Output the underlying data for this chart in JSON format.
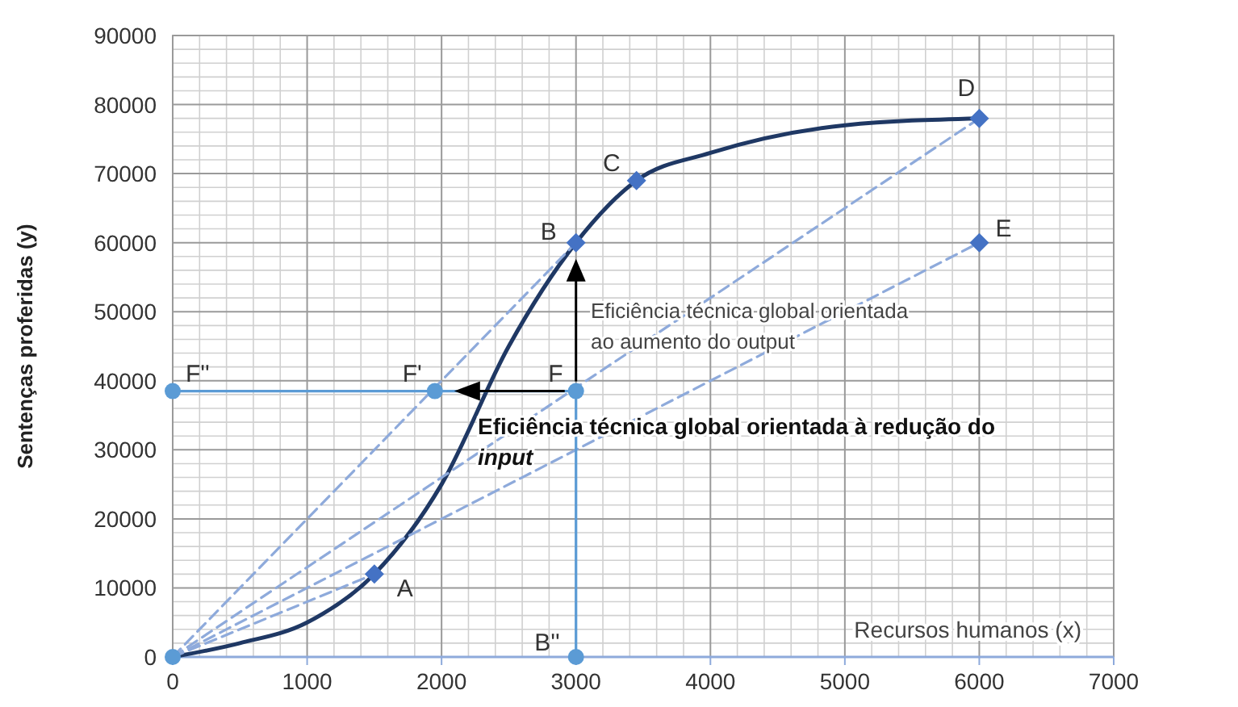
{
  "chart_data": {
    "type": "line",
    "ylabel": "Sentenças proferidas (y)",
    "xlabel": "Recursos humanos (x)",
    "xlim": [
      0,
      7000
    ],
    "xticks": [
      0,
      1000,
      2000,
      3000,
      4000,
      5000,
      6000,
      7000
    ],
    "ylim": [
      0,
      90000
    ],
    "yticks": [
      0,
      10000,
      20000,
      30000,
      40000,
      50000,
      60000,
      70000,
      80000,
      90000
    ],
    "grid": true,
    "series": [
      {
        "color": "#1f3864",
        "line_style": "solid",
        "x": [
          0,
          500,
          1000,
          1500,
          2000,
          2500,
          3000,
          3450,
          4000,
          5000,
          6000
        ],
        "values": [
          0,
          2000,
          5000,
          12000,
          25000,
          45000,
          60000,
          69000,
          73000,
          77000,
          78000
        ]
      },
      {
        "color": "#8eaadb",
        "line_style": "dashed",
        "x": [
          0,
          3000
        ],
        "values": [
          0,
          60000
        ]
      },
      {
        "color": "#8eaadb",
        "line_style": "dashed",
        "x": [
          0,
          6000
        ],
        "values": [
          0,
          78000
        ]
      },
      {
        "color": "#8eaadb",
        "line_style": "dashed",
        "x": [
          0,
          6000
        ],
        "values": [
          0,
          60000
        ]
      },
      {
        "color": "#8eaadb",
        "line_style": "dashed",
        "x": [
          0,
          1500
        ],
        "values": [
          0,
          12000
        ]
      },
      {
        "color": "#5b9bd5",
        "line_style": "solid",
        "x": [
          0,
          3000
        ],
        "values": [
          38500,
          38500
        ]
      },
      {
        "color": "#5b9bd5",
        "line_style": "solid",
        "x": [
          3000,
          3000
        ],
        "values": [
          38500,
          0
        ]
      },
      {
        "type": "scatter",
        "color": "#4472c4",
        "marker": "diamond",
        "x": [
          1500,
          3000,
          3450,
          6000,
          6000
        ],
        "values": [
          12000,
          60000,
          69000,
          78000,
          60000
        ]
      },
      {
        "type": "scatter",
        "color": "#5b9bd5",
        "marker": "circle",
        "x": [
          3000,
          1950,
          0,
          3000,
          0
        ],
        "values": [
          38500,
          38500,
          38500,
          0,
          0
        ]
      }
    ],
    "annotations": [
      {
        "text": "A",
        "x": 1500,
        "y": 12000
      },
      {
        "text": "B",
        "x": 3000,
        "y": 60000
      },
      {
        "text": "C",
        "x": 3450,
        "y": 69000
      },
      {
        "text": "D",
        "x": 6000,
        "y": 78000
      },
      {
        "text": "E",
        "x": 6000,
        "y": 60000
      },
      {
        "text": "F",
        "x": 3000,
        "y": 38500
      },
      {
        "text": "F'",
        "x": 1950,
        "y": 38500
      },
      {
        "text": "F''",
        "x": 0,
        "y": 38500
      },
      {
        "text": "B''",
        "x": 3000,
        "y": 0
      },
      {
        "text": "Eficiência técnica global orientada ao aumento do output",
        "x": 3000,
        "y": 60000
      },
      {
        "text": "Eficiência técnica global orientada à redução do input",
        "x": 1950,
        "y": 38500
      }
    ]
  }
}
